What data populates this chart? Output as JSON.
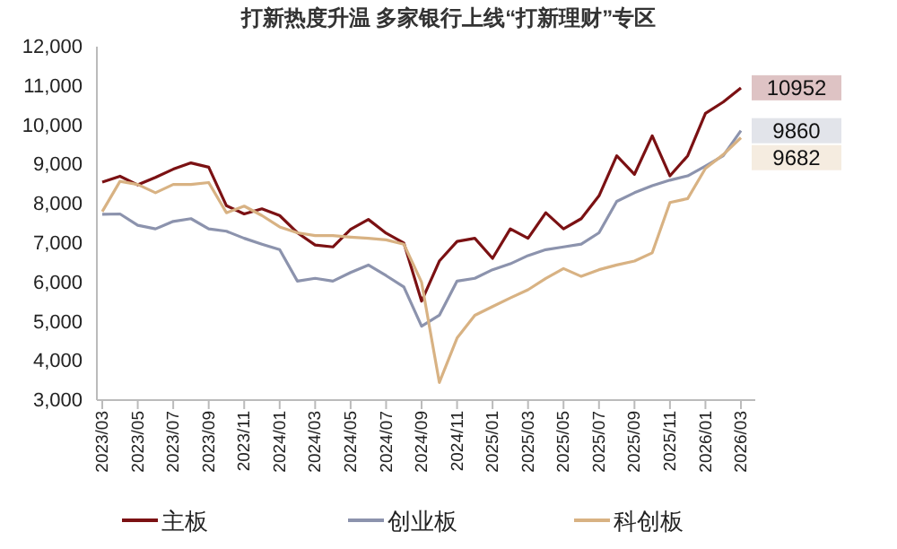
{
  "chart_data": {
    "type": "line",
    "title": "打新热度升温 多家银行上线“打新理财”专区",
    "categories": [
      "2023/03",
      null,
      "2023/05",
      null,
      "2023/07",
      null,
      "2023/09",
      null,
      "2023/11",
      null,
      "2024/01",
      null,
      "2024/03",
      null,
      "2024/05",
      null,
      "2024/07",
      null,
      "2024/09",
      null,
      "2024/11",
      null,
      "2025/01",
      null,
      "2025/03",
      null,
      "2025/05",
      null,
      "2025/07",
      null,
      "2025/09",
      null,
      "2025/11",
      null,
      "2026/01",
      null,
      "2026/03"
    ],
    "series": [
      {
        "name": "主板",
        "color": "#7b1113",
        "values": [
          8550,
          8700,
          8480,
          8670,
          8880,
          9040,
          8930,
          7950,
          7740,
          7870,
          7700,
          7260,
          6950,
          6900,
          7350,
          7600,
          7250,
          7000,
          5520,
          6540,
          7040,
          7120,
          6610,
          7360,
          7120,
          7770,
          7360,
          7620,
          8200,
          9220,
          8750,
          9730,
          8710,
          9220,
          10300,
          10590,
          10952
        ],
        "value_labels": [
          null,
          null,
          null,
          null,
          null,
          null,
          null,
          null,
          null,
          null,
          null,
          null,
          null,
          null,
          null,
          null,
          null,
          null,
          null,
          null,
          null,
          null,
          null,
          null,
          null,
          null,
          null,
          null,
          null,
          null,
          null,
          null,
          null,
          null,
          null,
          null,
          "10952"
        ]
      },
      {
        "name": "创业板",
        "color": "#8c93ad",
        "values": [
          7730,
          7740,
          7450,
          7360,
          7550,
          7620,
          7360,
          7300,
          7120,
          6970,
          6830,
          6030,
          6100,
          6030,
          6250,
          6440,
          6170,
          5880,
          4880,
          5160,
          6030,
          6100,
          6320,
          6470,
          6680,
          6830,
          6900,
          6970,
          7260,
          8060,
          8280,
          8460,
          8600,
          8710,
          8960,
          9220,
          9860
        ],
        "value_labels": [
          null,
          null,
          null,
          null,
          null,
          null,
          null,
          null,
          null,
          null,
          null,
          null,
          null,
          null,
          null,
          null,
          null,
          null,
          null,
          null,
          null,
          null,
          null,
          null,
          null,
          null,
          null,
          null,
          null,
          null,
          null,
          null,
          null,
          null,
          null,
          null,
          "9860"
        ]
      },
      {
        "name": "科创板",
        "color": "#d8b283",
        "values": [
          7800,
          8570,
          8490,
          8280,
          8490,
          8490,
          8540,
          7770,
          7940,
          7700,
          7410,
          7260,
          7190,
          7190,
          7150,
          7120,
          7080,
          6970,
          6000,
          3450,
          4580,
          5160,
          5380,
          5600,
          5810,
          6100,
          6350,
          6150,
          6320,
          6440,
          6540,
          6750,
          8030,
          8130,
          8900,
          9250,
          9682
        ],
        "value_labels": [
          null,
          null,
          null,
          null,
          null,
          null,
          null,
          null,
          null,
          null,
          null,
          null,
          null,
          null,
          null,
          null,
          null,
          null,
          null,
          null,
          null,
          null,
          null,
          null,
          null,
          null,
          null,
          null,
          null,
          null,
          null,
          null,
          null,
          null,
          null,
          null,
          "9682"
        ]
      }
    ],
    "ylim": [
      3000,
      12000
    ],
    "yticks": [
      {
        "value": 3000,
        "label": "3,000"
      },
      {
        "value": 4000,
        "label": "4,000"
      },
      {
        "value": 5000,
        "label": "5,000"
      },
      {
        "value": 6000,
        "label": "6,000"
      },
      {
        "value": 7000,
        "label": "7,000"
      },
      {
        "value": 8000,
        "label": "8,000"
      },
      {
        "value": 9000,
        "label": "9,000"
      },
      {
        "value": 10000,
        "label": "10,000"
      },
      {
        "value": 11000,
        "label": "11,000"
      },
      {
        "value": 12000,
        "label": "12,000"
      }
    ],
    "grid": false,
    "legend": "bottom",
    "marker": "none",
    "line_style": "solid"
  }
}
